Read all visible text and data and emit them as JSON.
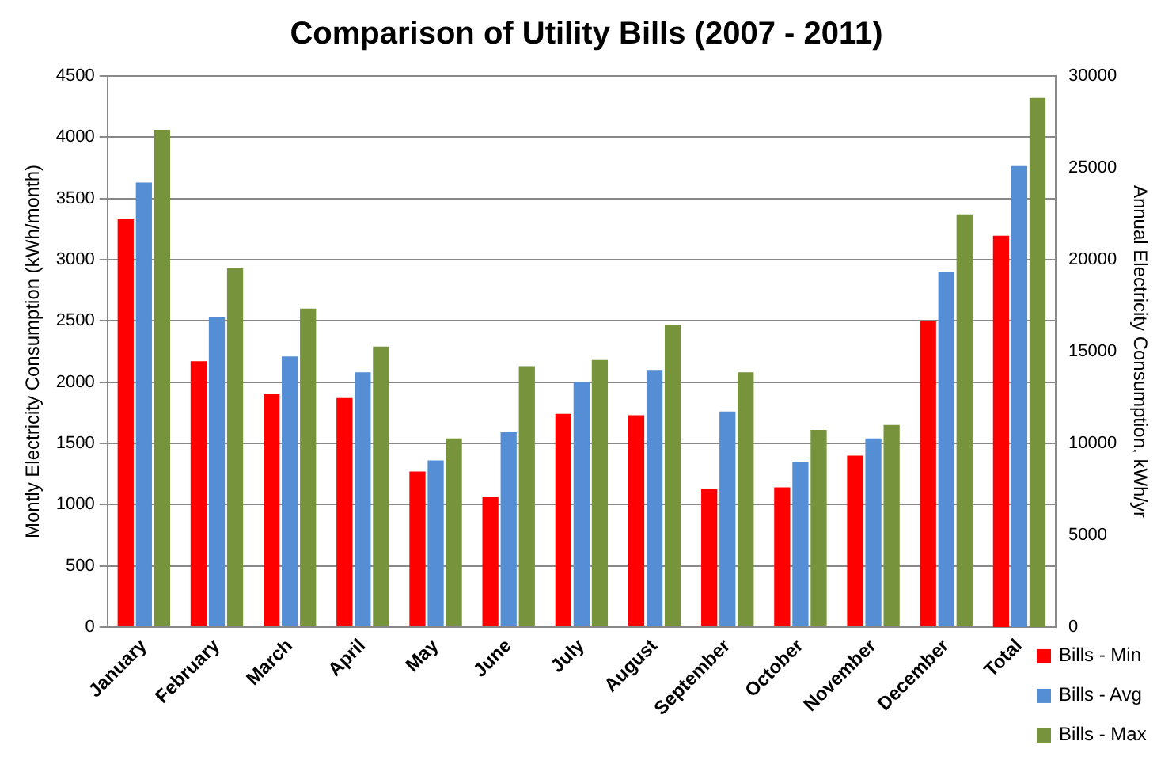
{
  "chart_data": {
    "type": "bar",
    "title": "Comparison of Utility Bills (2007 - 2011)",
    "categories": [
      "January",
      "February",
      "March",
      "April",
      "May",
      "June",
      "July",
      "August",
      "September",
      "October",
      "November",
      "December",
      "Total"
    ],
    "ylabel": "Montly Electricity Consumption (kWh/month)",
    "y2label": "Annual Electricity Consumption, kWh/yr",
    "series": [
      {
        "name": "Bills - Min",
        "color": "#ff0000",
        "values": [
          3330,
          2170,
          1900,
          1870,
          1270,
          1060,
          1740,
          1730,
          1130,
          1140,
          1400,
          2500,
          null
        ]
      },
      {
        "name": "Bills - Avg",
        "color": "#558ed5",
        "values": [
          3630,
          2530,
          2210,
          2080,
          1360,
          1590,
          2000,
          2100,
          1760,
          1350,
          1540,
          2900,
          null
        ]
      },
      {
        "name": "Bills - Max",
        "color": "#77933c",
        "values": [
          4060,
          2930,
          2600,
          2290,
          1540,
          2130,
          2180,
          2470,
          2080,
          1610,
          1650,
          3370,
          null
        ]
      },
      {
        "color": "#ff0000",
        "axis": "y2",
        "values": [
          null,
          null,
          null,
          null,
          null,
          null,
          null,
          null,
          null,
          null,
          null,
          null,
          21300
        ]
      },
      {
        "color": "#558ed5",
        "axis": "y2",
        "values": [
          null,
          null,
          null,
          null,
          null,
          null,
          null,
          null,
          null,
          null,
          null,
          null,
          25100
        ]
      },
      {
        "color": "#77933c",
        "axis": "y2",
        "values": [
          null,
          null,
          null,
          null,
          null,
          null,
          null,
          null,
          null,
          null,
          null,
          null,
          28800
        ]
      }
    ],
    "ylim": [
      0,
      4500
    ],
    "yticks": [
      0,
      500,
      1000,
      1500,
      2000,
      2500,
      3000,
      3500,
      4000,
      4500
    ],
    "y2lim": [
      0,
      30000
    ],
    "y2ticks": [
      0,
      5000,
      10000,
      15000,
      20000,
      25000,
      30000
    ],
    "grid": "y",
    "legend": "bottom right"
  }
}
